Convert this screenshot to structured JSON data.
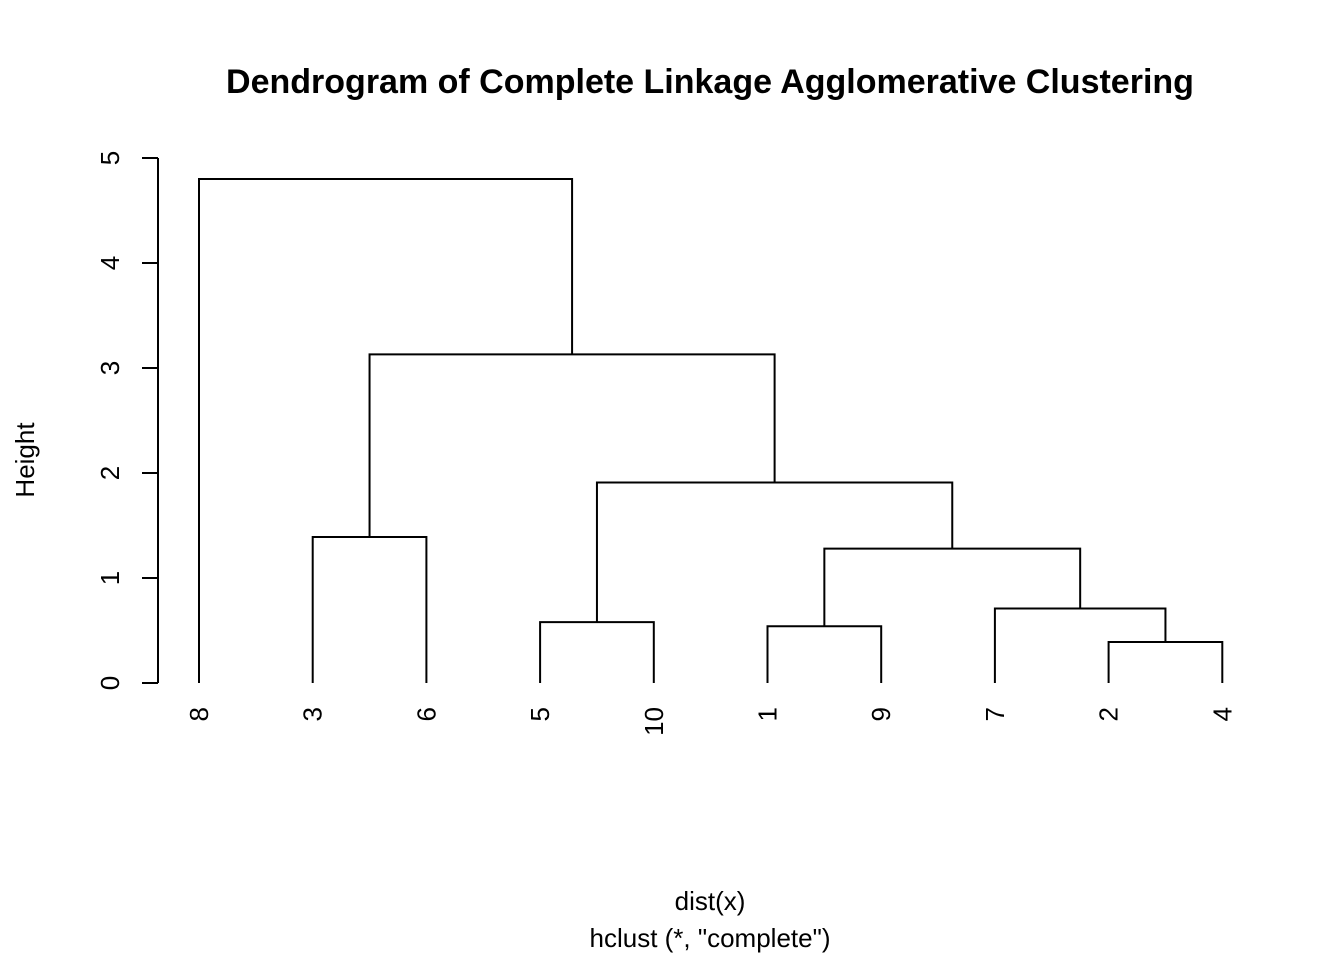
{
  "chart_data": {
    "type": "dendrogram",
    "title": "Dendrogram of Complete Linkage Agglomerative Clustering",
    "ylabel": "Height",
    "xlabel": "dist(x)",
    "sub": "hclust (*, \"complete\")",
    "ylim": [
      0,
      5
    ],
    "yticks": [
      0,
      1,
      2,
      3,
      4,
      5
    ],
    "leaf_order": [
      "8",
      "3",
      "6",
      "5",
      "10",
      "1",
      "9",
      "7",
      "2",
      "4"
    ],
    "merges": [
      {
        "id": "m1",
        "left": "2",
        "right": "4",
        "height": 0.39
      },
      {
        "id": "m2",
        "left": "1",
        "right": "9",
        "height": 0.54
      },
      {
        "id": "m3",
        "left": "5",
        "right": "10",
        "height": 0.58
      },
      {
        "id": "m4",
        "left": "7",
        "right": "m1",
        "height": 0.71
      },
      {
        "id": "m5",
        "left": "m2",
        "right": "m4",
        "height": 1.28
      },
      {
        "id": "m6",
        "left": "3",
        "right": "6",
        "height": 1.39
      },
      {
        "id": "m7",
        "left": "m3",
        "right": "m5",
        "height": 1.91
      },
      {
        "id": "m8",
        "left": "m6",
        "right": "m7",
        "height": 3.13
      },
      {
        "id": "m9",
        "left": "8",
        "right": "m8",
        "height": 4.8
      }
    ],
    "grid": false,
    "legend": "none"
  }
}
